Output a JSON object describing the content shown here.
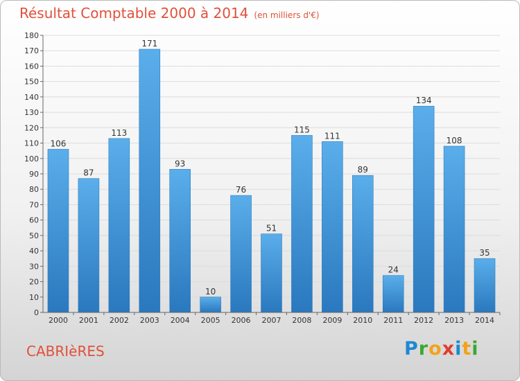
{
  "header": {
    "title": "Résultat Comptable 2000 à 2014",
    "subtitle": "(en milliers d'€)"
  },
  "footer": {
    "commune": "CABRIèRES"
  },
  "logo": {
    "letters": [
      {
        "ch": "P",
        "color": "#1e88d2"
      },
      {
        "ch": "r",
        "color": "#3aa832"
      },
      {
        "ch": "o",
        "color": "#f2a31b"
      },
      {
        "ch": "x",
        "color": "#e33b2f"
      },
      {
        "ch": "i",
        "color": "#1e88d2"
      },
      {
        "ch": "t",
        "color": "#f2a31b"
      },
      {
        "ch": "i",
        "color": "#3aa832"
      }
    ]
  },
  "chart_data": {
    "type": "bar",
    "title": "Résultat Comptable 2000 à 2014",
    "subtitle": "(en milliers d'€)",
    "categories": [
      "2000",
      "2001",
      "2002",
      "2003",
      "2004",
      "2005",
      "2006",
      "2007",
      "2008",
      "2009",
      "2010",
      "2011",
      "2012",
      "2013",
      "2014"
    ],
    "values": [
      106,
      87,
      113,
      171,
      93,
      10,
      76,
      51,
      115,
      111,
      89,
      24,
      134,
      108,
      35
    ],
    "ylim": [
      0,
      180
    ],
    "ytick_step": 10,
    "grid": true,
    "bar_color": "#4a9fe0"
  }
}
